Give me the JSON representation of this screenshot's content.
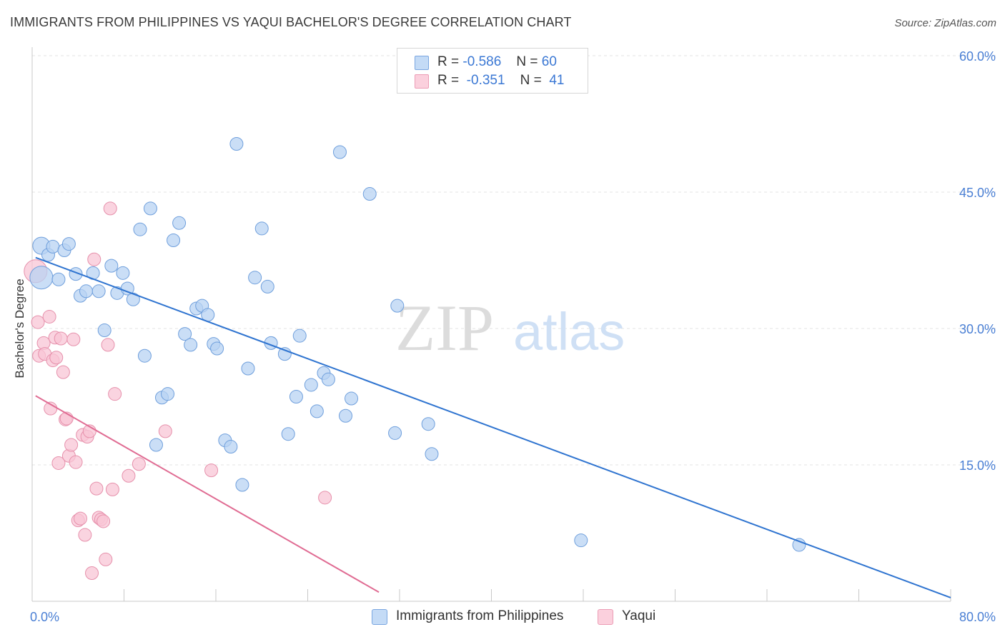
{
  "title": "IMMIGRANTS FROM PHILIPPINES VS YAQUI BACHELOR'S DEGREE CORRELATION CHART",
  "source": "Source: ZipAtlas.com",
  "watermark": {
    "zip": "ZIP",
    "atlas": "atlas"
  },
  "legend": {
    "rows": [
      {
        "r_label": "R =",
        "r_value": "-0.586",
        "n_label": "N =",
        "n_value": "60",
        "color": "#a9c9f0"
      },
      {
        "r_label": "R =",
        "r_value": "-0.351",
        "n_label": "N =",
        "n_value": "41",
        "color": "#f5b5c8"
      }
    ]
  },
  "bottom_legend": [
    {
      "label": "Immigrants from Philippines",
      "color": "#a9c9f0"
    },
    {
      "label": "Yaqui",
      "color": "#f5b5c8"
    }
  ],
  "chart_data": {
    "type": "scatter",
    "ylabel": "Bachelor's Degree",
    "xlabel": "",
    "xlim": [
      0,
      80
    ],
    "ylim": [
      0,
      60
    ],
    "x_tick_labels": [
      "0.0%",
      "80.0%"
    ],
    "y_tick_labels": [
      {
        "value": 15,
        "label": "15.0%"
      },
      {
        "value": 30,
        "label": "30.0%"
      },
      {
        "value": 45,
        "label": "45.0%"
      },
      {
        "value": 60,
        "label": "60.0%"
      }
    ],
    "grid": true,
    "colors": {
      "blue_fill": "#b8d3f3",
      "blue_stroke": "#6f9fdc",
      "blue_line": "#2f74d0",
      "pink_fill": "#f8c6d5",
      "pink_stroke": "#e690ab",
      "pink_line": "#e06c93",
      "tick_label": "#4a7fd4"
    },
    "series": [
      {
        "name": "Immigrants from Philippines",
        "points": [
          [
            0.8,
            35.6
          ],
          [
            0.8,
            39.1
          ],
          [
            1.4,
            38.1
          ],
          [
            1.8,
            39.0
          ],
          [
            2.3,
            35.4
          ],
          [
            2.8,
            38.6
          ],
          [
            3.2,
            39.3
          ],
          [
            3.8,
            36.0
          ],
          [
            4.2,
            33.6
          ],
          [
            4.7,
            34.1
          ],
          [
            5.3,
            36.1
          ],
          [
            5.8,
            34.1
          ],
          [
            6.3,
            29.8
          ],
          [
            6.9,
            36.9
          ],
          [
            7.4,
            33.9
          ],
          [
            7.9,
            36.1
          ],
          [
            8.3,
            34.4
          ],
          [
            8.8,
            33.2
          ],
          [
            9.4,
            40.9
          ],
          [
            9.8,
            27.0
          ],
          [
            10.3,
            43.2
          ],
          [
            10.8,
            17.2
          ],
          [
            11.3,
            22.4
          ],
          [
            11.8,
            22.8
          ],
          [
            12.3,
            39.7
          ],
          [
            12.8,
            41.6
          ],
          [
            13.3,
            29.4
          ],
          [
            13.8,
            28.2
          ],
          [
            14.3,
            32.2
          ],
          [
            14.8,
            32.5
          ],
          [
            15.3,
            31.5
          ],
          [
            15.8,
            28.3
          ],
          [
            16.1,
            27.8
          ],
          [
            16.8,
            17.7
          ],
          [
            17.3,
            17.0
          ],
          [
            17.8,
            50.3
          ],
          [
            18.3,
            12.8
          ],
          [
            18.8,
            25.6
          ],
          [
            19.4,
            35.6
          ],
          [
            20.0,
            41.0
          ],
          [
            20.5,
            34.6
          ],
          [
            20.8,
            28.4
          ],
          [
            22.0,
            27.2
          ],
          [
            22.3,
            18.4
          ],
          [
            23.0,
            22.5
          ],
          [
            23.3,
            29.2
          ],
          [
            24.3,
            23.8
          ],
          [
            24.8,
            20.9
          ],
          [
            25.4,
            25.1
          ],
          [
            25.8,
            24.4
          ],
          [
            26.8,
            49.4
          ],
          [
            27.3,
            20.4
          ],
          [
            27.8,
            22.3
          ],
          [
            29.4,
            44.8
          ],
          [
            31.6,
            18.5
          ],
          [
            31.8,
            32.5
          ],
          [
            34.5,
            19.5
          ],
          [
            34.8,
            16.2
          ],
          [
            47.8,
            6.7
          ],
          [
            66.8,
            6.2
          ]
        ],
        "trend": {
          "x": [
            0.3,
            80.0
          ],
          "y": [
            37.8,
            0.4
          ]
        }
      },
      {
        "name": "Yaqui",
        "points": [
          [
            0.3,
            36.3
          ],
          [
            0.5,
            30.7
          ],
          [
            0.6,
            27.0
          ],
          [
            1.0,
            28.4
          ],
          [
            1.1,
            27.2
          ],
          [
            1.5,
            31.3
          ],
          [
            1.6,
            21.2
          ],
          [
            1.8,
            26.5
          ],
          [
            2.0,
            29.0
          ],
          [
            2.1,
            26.8
          ],
          [
            2.3,
            15.2
          ],
          [
            2.5,
            28.9
          ],
          [
            2.7,
            25.2
          ],
          [
            2.9,
            20.0
          ],
          [
            3.0,
            20.1
          ],
          [
            3.2,
            16.0
          ],
          [
            3.4,
            17.2
          ],
          [
            3.6,
            28.8
          ],
          [
            3.8,
            15.3
          ],
          [
            4.0,
            8.9
          ],
          [
            4.2,
            9.1
          ],
          [
            4.4,
            18.3
          ],
          [
            4.6,
            7.3
          ],
          [
            4.8,
            18.1
          ],
          [
            5.0,
            18.7
          ],
          [
            5.2,
            3.1
          ],
          [
            5.4,
            37.6
          ],
          [
            5.6,
            12.4
          ],
          [
            5.8,
            9.2
          ],
          [
            6.0,
            9.0
          ],
          [
            6.2,
            8.8
          ],
          [
            6.4,
            4.6
          ],
          [
            6.6,
            28.2
          ],
          [
            6.8,
            43.2
          ],
          [
            7.0,
            12.3
          ],
          [
            7.2,
            22.8
          ],
          [
            8.4,
            13.8
          ],
          [
            9.3,
            15.1
          ],
          [
            11.6,
            18.7
          ],
          [
            15.6,
            14.4
          ],
          [
            25.5,
            11.4
          ]
        ],
        "trend": {
          "x": [
            0.3,
            30.2
          ],
          "y": [
            22.6,
            1.0
          ]
        }
      }
    ]
  }
}
